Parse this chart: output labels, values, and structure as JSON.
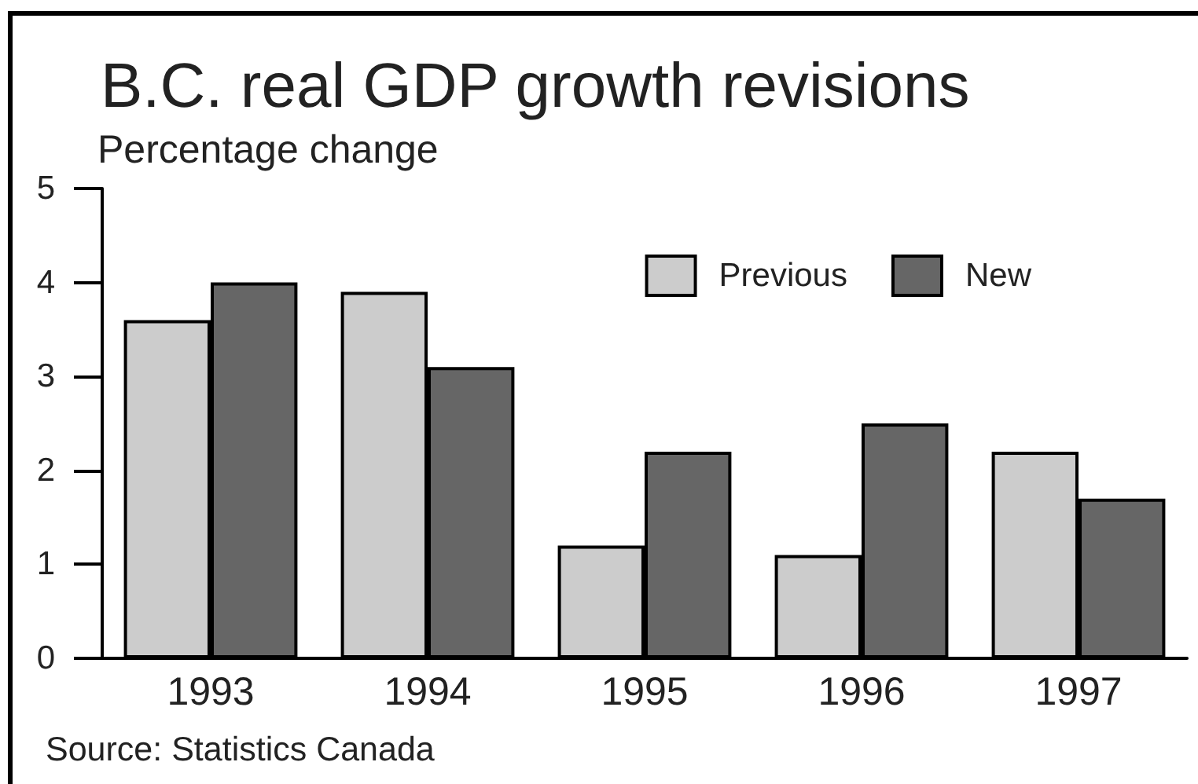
{
  "chart_data": {
    "type": "bar",
    "title": "B.C. real GDP growth revisions",
    "ylabel": "Percentage change",
    "categories": [
      "1993",
      "1994",
      "1995",
      "1996",
      "1997"
    ],
    "series": [
      {
        "name": "Previous",
        "color": "#cccccc",
        "values": [
          3.6,
          3.9,
          1.2,
          1.1,
          2.2
        ]
      },
      {
        "name": "New",
        "color": "#666666",
        "values": [
          4.0,
          3.1,
          2.2,
          2.5,
          1.7
        ]
      }
    ],
    "ylim": [
      0,
      5
    ],
    "yticks": [
      0,
      1,
      2,
      3,
      4,
      5
    ],
    "legend": "top right",
    "annotations": [
      "Source: Statistics Canada"
    ]
  }
}
